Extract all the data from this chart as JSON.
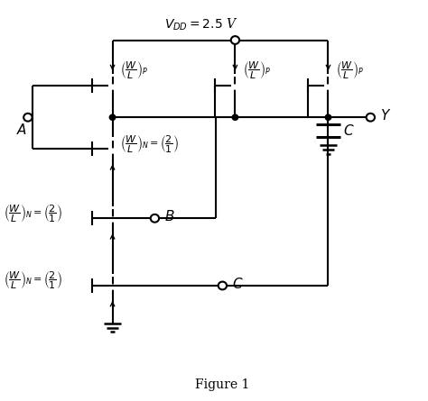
{
  "fig_width": 4.74,
  "fig_height": 4.45,
  "dpi": 100,
  "xlim": [
    0,
    10
  ],
  "ylim": [
    0,
    10
  ],
  "vdd_label": "$V_{DD} = 2.5$ V",
  "fig_label": "Figure 1",
  "label_A": "$A$",
  "label_B": "$B$",
  "label_C": "$C$",
  "label_Y": "$Y$",
  "label_cap": "$C$",
  "label_WL_P": "$\\left(\\dfrac{W}{L}\\right)_P$",
  "label_WL_N": "$\\left(\\dfrac{W}{L}\\right)_N$",
  "label_WL_N_val": "$\\left(\\dfrac{W}{L}\\right)_N = \\left(\\dfrac{2}{1}\\right)$",
  "label_21": "$\\left(\\dfrac{2}{1}\\right)$",
  "p1": [
    2.6,
    7.9
  ],
  "p2": [
    5.5,
    7.9
  ],
  "p3": [
    7.7,
    7.9
  ],
  "n1": [
    2.6,
    6.3
  ],
  "nb": [
    2.6,
    4.55
  ],
  "nc": [
    2.6,
    2.85
  ],
  "vdd_y": 9.05,
  "out1_y": 7.1,
  "out_bus_y": 7.1,
  "Y_x": 8.7,
  "Y_y": 7.1,
  "A_x": 0.6,
  "A_y": 7.1,
  "B_x": 3.6,
  "C_x": 5.2
}
